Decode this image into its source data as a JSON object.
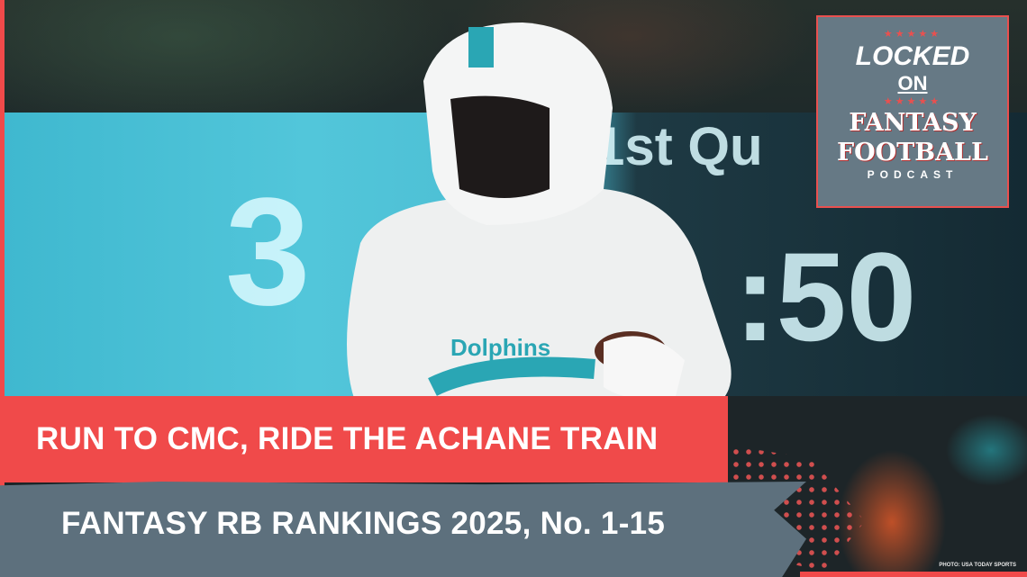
{
  "headline": "RUN TO CMC, RIDE THE ACHANE TRAIN",
  "subheadline": "FANTASY RB RANKINGS 2025, No. 1-15",
  "photo_credit": "PHOTO: USA TODAY SPORTS",
  "logo": {
    "line1": "LOCKED",
    "line2": "ON",
    "line3": "FANTASY",
    "line4": "FOOTBALL",
    "line5": "PODCAST",
    "stars": "★★★★★"
  },
  "scoreboard": {
    "score": "3",
    "clock": ":50",
    "label": "1st Qu"
  },
  "jersey_text": "Dolphins",
  "colors": {
    "banner_red": "#f04a4a",
    "banner_gray": "#5d707d",
    "logo_bg": "#667985"
  }
}
